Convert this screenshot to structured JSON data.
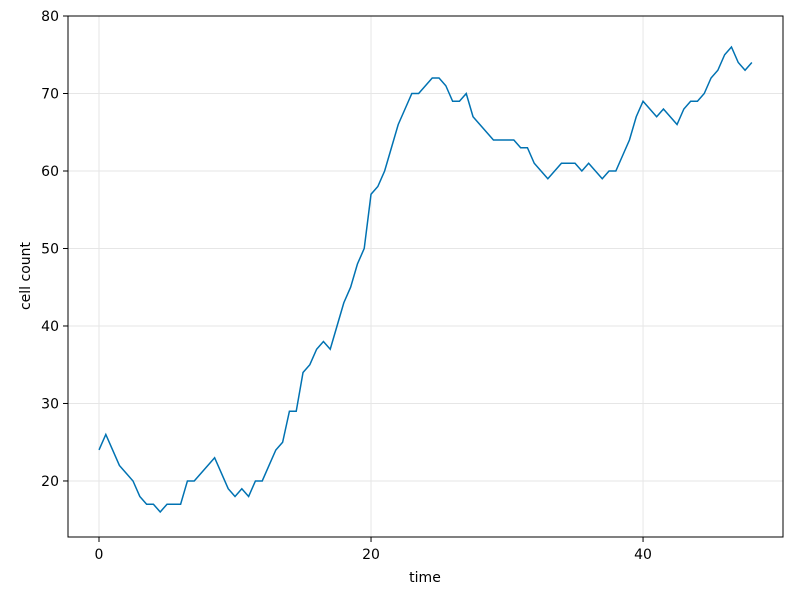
{
  "chart_data": {
    "type": "line",
    "x_label": "time",
    "y_label": "cell count",
    "x": [
      0,
      0.5,
      1,
      1.5,
      2,
      2.5,
      3,
      3.5,
      4,
      4.5,
      5,
      5.5,
      6,
      6.5,
      7,
      7.5,
      8,
      8.5,
      9,
      9.5,
      10,
      10.5,
      11,
      11.5,
      12,
      12.5,
      13,
      13.5,
      14,
      14.5,
      15,
      15.5,
      16,
      16.5,
      17,
      17.5,
      18,
      18.5,
      19,
      19.5,
      20,
      20.5,
      21,
      21.5,
      22,
      22.5,
      23,
      23.5,
      24,
      24.5,
      25,
      25.5,
      26,
      26.5,
      27,
      27.5,
      28,
      28.5,
      29,
      29.5,
      30,
      30.5,
      31,
      31.5,
      32,
      32.5,
      33,
      33.5,
      34,
      34.5,
      35,
      35.5,
      36,
      36.5,
      37,
      37.5,
      38,
      38.5,
      39,
      39.5,
      40,
      40.5,
      41,
      41.5,
      42,
      42.5,
      43,
      43.5,
      44,
      44.5,
      45,
      45.5,
      46,
      46.5,
      47,
      47.5,
      48
    ],
    "series": [
      {
        "color": "#0072b2",
        "values": [
          24,
          26,
          24,
          22,
          21,
          20,
          18,
          17,
          17,
          16,
          17,
          17,
          17,
          20,
          20,
          21,
          22,
          23,
          21,
          19,
          18,
          19,
          18,
          20,
          20,
          22,
          24,
          25,
          29,
          29,
          34,
          35,
          37,
          38,
          37,
          40,
          43,
          45,
          48,
          50,
          57,
          58,
          60,
          63,
          66,
          68,
          70,
          70,
          71,
          72,
          72,
          71,
          69,
          69,
          70,
          67,
          66,
          65,
          64,
          64,
          64,
          64,
          63,
          63,
          61,
          60,
          59,
          60,
          61,
          61,
          61,
          60,
          61,
          60,
          59,
          60,
          60,
          62,
          64,
          67,
          69,
          68,
          67,
          68,
          67,
          66,
          68,
          69,
          69,
          70,
          72,
          73,
          75,
          76,
          74,
          73,
          74
        ]
      }
    ],
    "xlim": [
      -2.28,
      50.29
    ],
    "ylim": [
      12.77,
      80
    ],
    "xticks": [
      0,
      20,
      40
    ],
    "yticks": [
      20,
      30,
      40,
      50,
      60,
      70,
      80
    ],
    "grid": true
  }
}
